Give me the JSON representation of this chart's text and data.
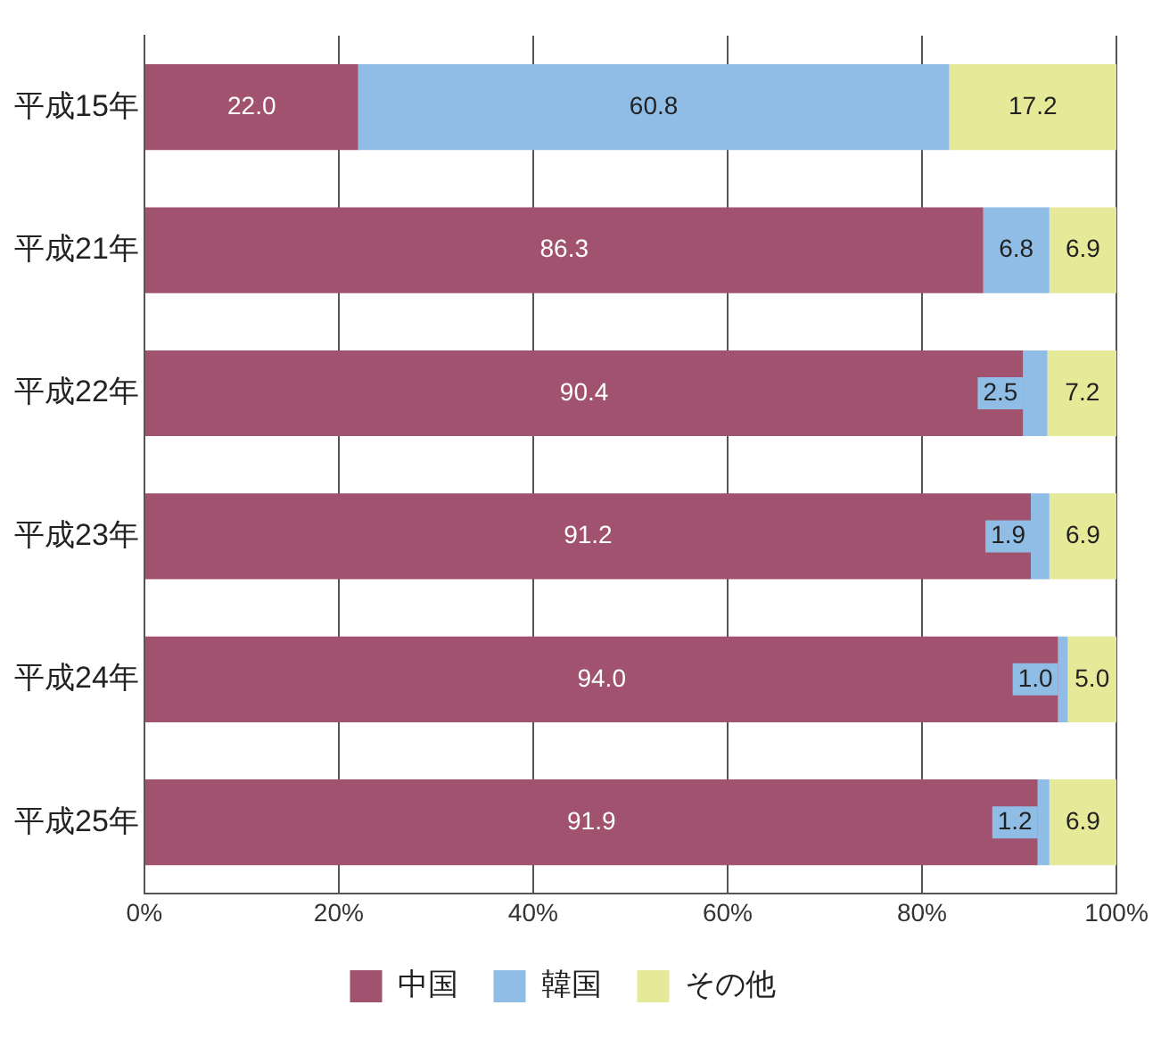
{
  "chart_data": {
    "type": "bar",
    "orientation": "horizontal",
    "stacked": true,
    "categories": [
      "平成15年",
      "平成21年",
      "平成22年",
      "平成23年",
      "平成24年",
      "平成25年"
    ],
    "series": [
      {
        "name": "中国",
        "color": "#a0526f",
        "values": [
          22.0,
          86.3,
          90.4,
          91.2,
          94.0,
          91.9
        ],
        "value_labels": [
          "22.0",
          "86.3",
          "90.4",
          "91.2",
          "94.0",
          "91.9"
        ]
      },
      {
        "name": "韓国",
        "color": "#8fbde6",
        "values": [
          60.8,
          6.8,
          2.5,
          1.9,
          1.0,
          1.2
        ],
        "value_labels": [
          "60.8",
          "6.8",
          "2.5",
          "1.9",
          "1.0",
          "1.2"
        ]
      },
      {
        "name": "その他",
        "color": "#e6e997",
        "values": [
          17.2,
          6.9,
          7.2,
          6.9,
          5.0,
          6.9
        ],
        "value_labels": [
          "17.2",
          "6.9",
          "7.2",
          "6.9",
          "5.0",
          "6.9"
        ]
      }
    ],
    "xlim": [
      0,
      100
    ],
    "xticks": [
      {
        "value": 0,
        "label": "0%"
      },
      {
        "value": 20,
        "label": "20%"
      },
      {
        "value": 40,
        "label": "40%"
      },
      {
        "value": 60,
        "label": "60%"
      },
      {
        "value": 80,
        "label": "80%"
      },
      {
        "value": 100,
        "label": "100%"
      }
    ],
    "grid": "x",
    "legend": "bottom"
  }
}
